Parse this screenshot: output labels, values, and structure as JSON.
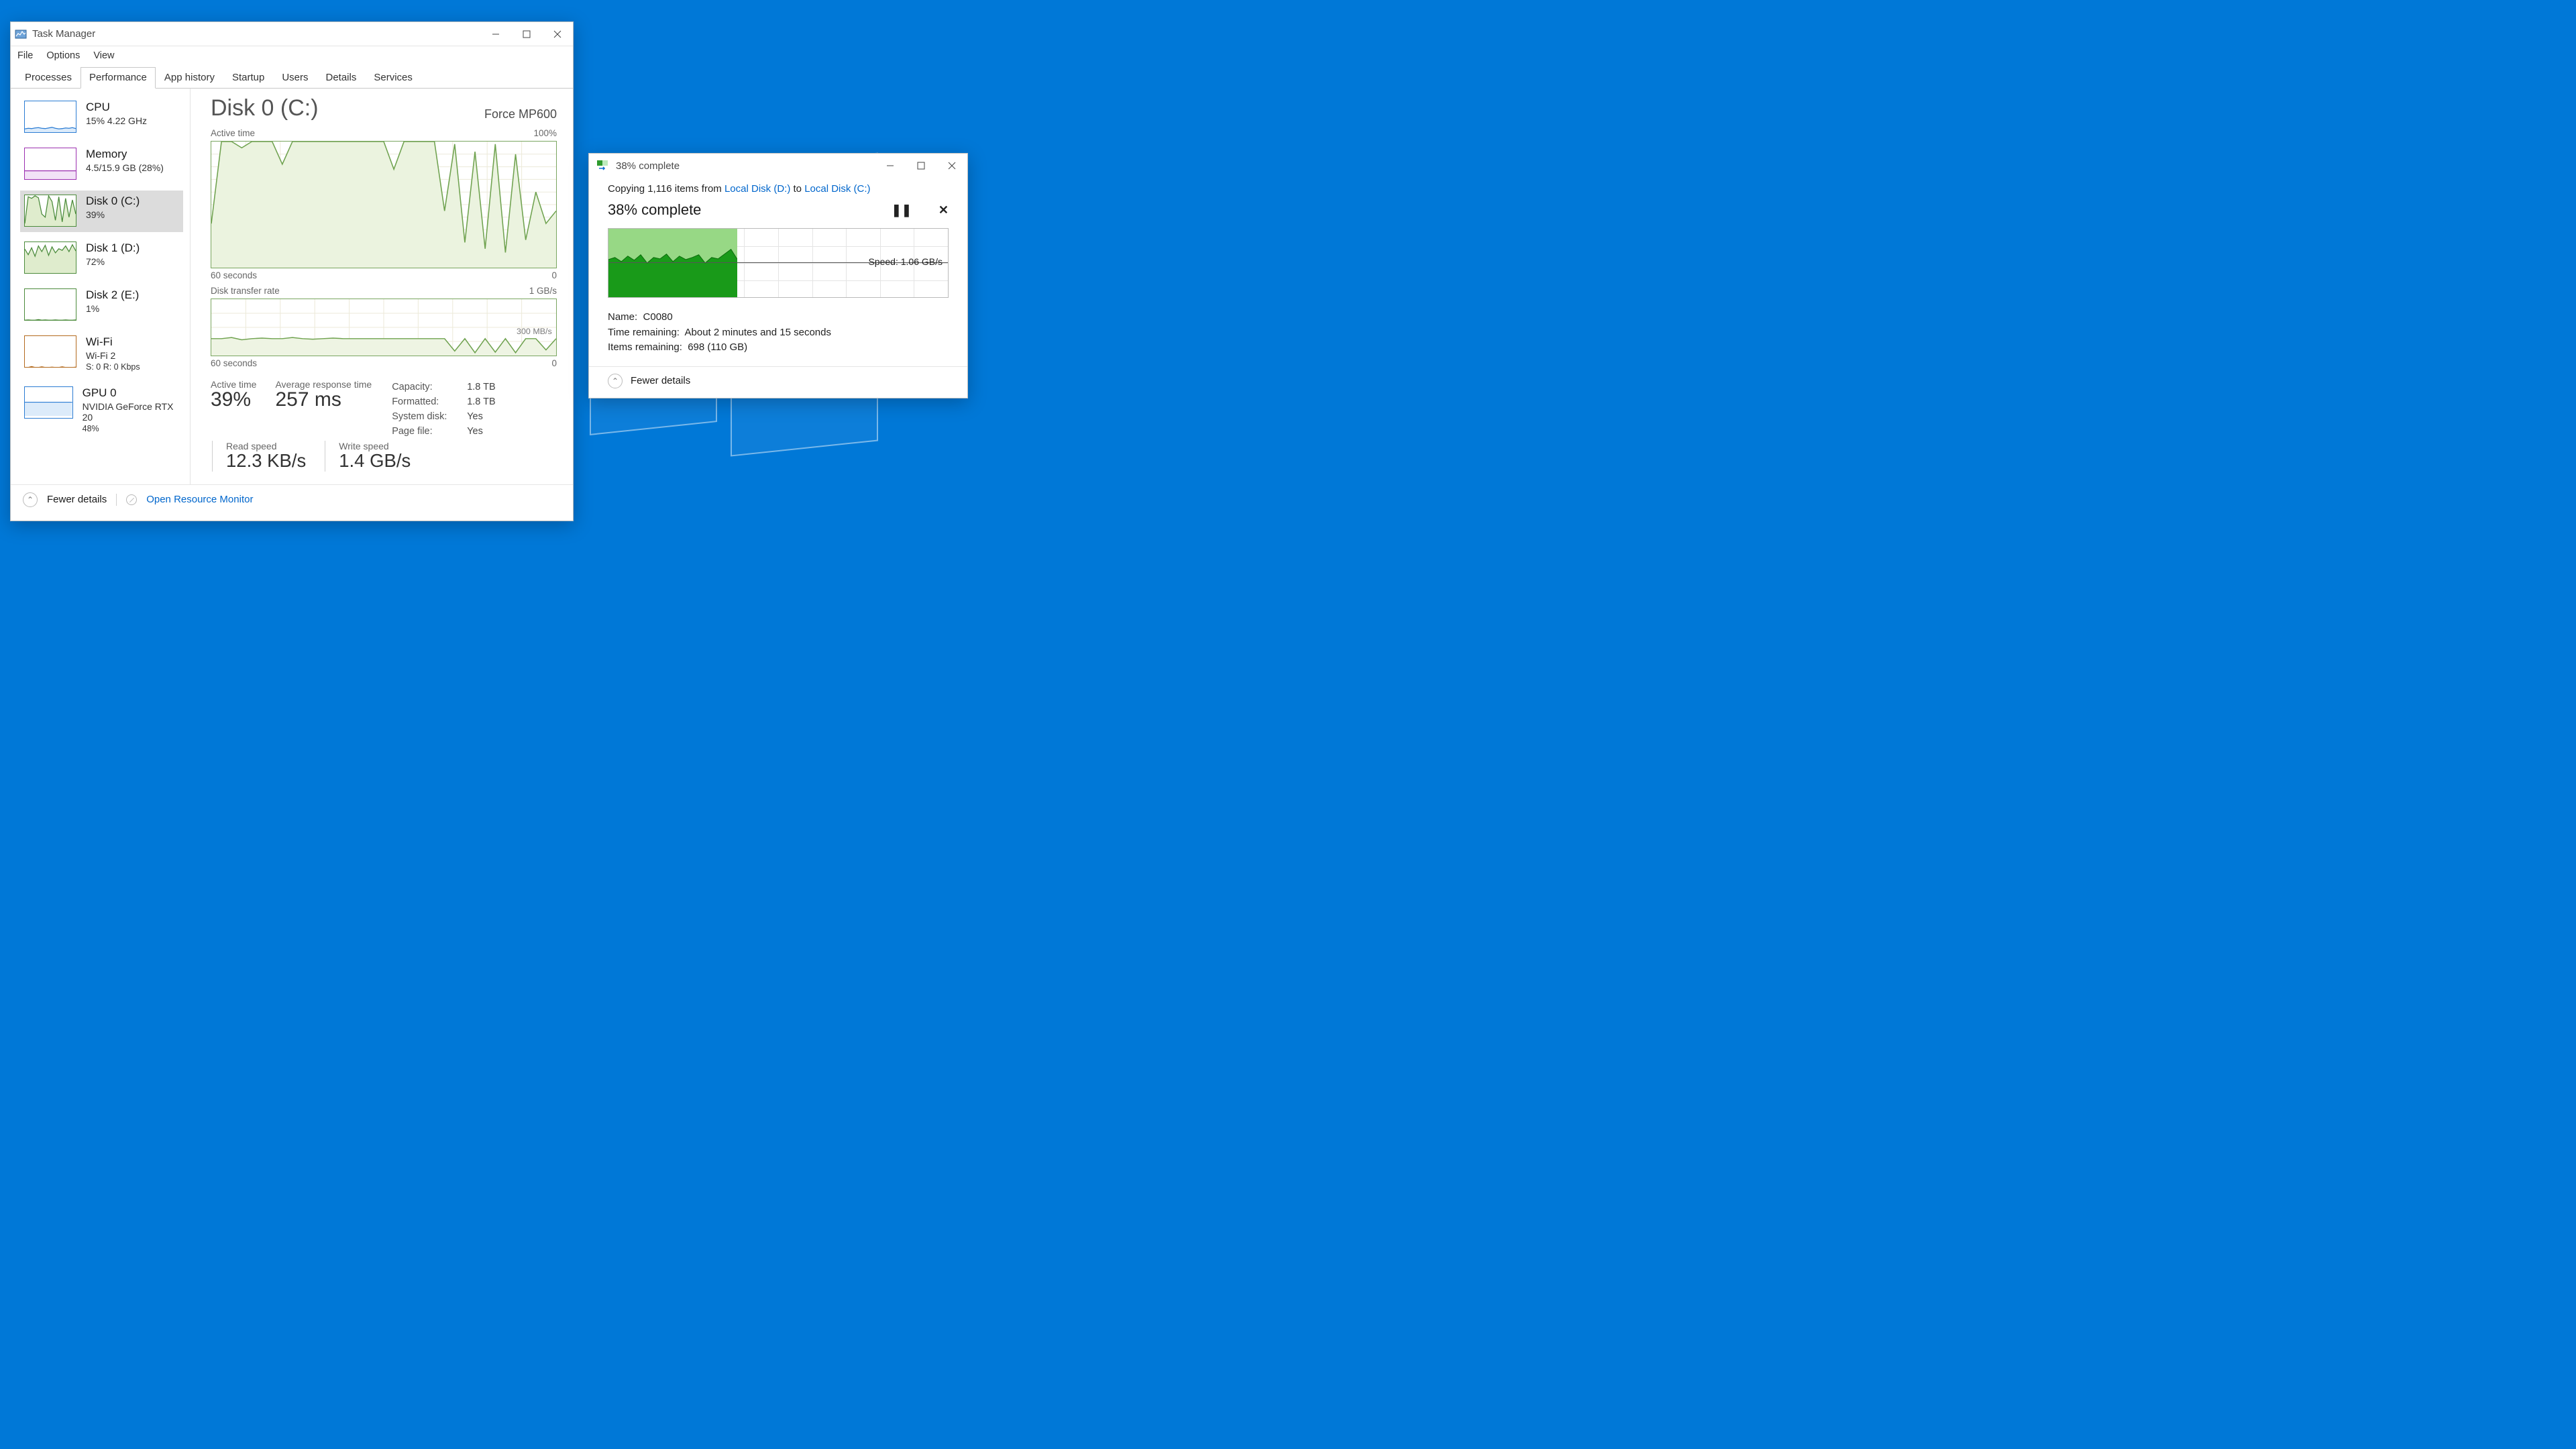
{
  "desktop": {
    "background": "#0078d7",
    "logo_border": "rgba(255,255,255,0.45)"
  },
  "taskmgr": {
    "title": "Task Manager",
    "menu": [
      "File",
      "Options",
      "View"
    ],
    "tabs": [
      "Processes",
      "Performance",
      "App history",
      "Startup",
      "Users",
      "Details",
      "Services"
    ],
    "selectedTab": 1,
    "sidebar": [
      {
        "name": "CPU",
        "line2": "15% 4.22 GHz",
        "color": "#2b7cd3",
        "fill": "#dcebfa",
        "data": [
          12,
          14,
          13,
          15,
          16,
          14,
          13,
          15,
          17,
          14,
          12,
          13,
          15,
          14,
          16,
          13
        ]
      },
      {
        "name": "Memory",
        "line2": "4.5/15.9 GB (28%)",
        "color": "#9c2fb0",
        "fill": "#f2e2f7",
        "data": [
          28,
          28,
          28,
          28,
          28,
          28,
          28,
          28,
          28,
          28,
          28,
          28,
          28,
          28,
          28,
          28
        ]
      },
      {
        "name": "Disk 0 (C:)",
        "line2": "39%",
        "color": "#4b8b3b",
        "fill": "#dfeccd",
        "selected": true,
        "data": [
          10,
          95,
          90,
          98,
          92,
          40,
          30,
          98,
          80,
          20,
          95,
          15,
          90,
          30,
          85,
          40
        ]
      },
      {
        "name": "Disk 1 (D:)",
        "line2": "72%",
        "color": "#4b8b3b",
        "fill": "#dfeccd",
        "data": [
          78,
          60,
          82,
          55,
          88,
          70,
          90,
          58,
          85,
          66,
          79,
          74,
          88,
          70,
          92,
          72
        ]
      },
      {
        "name": "Disk 2 (E:)",
        "line2": "1%",
        "color": "#4b8b3b",
        "fill": "#dfeccd",
        "data": [
          1,
          2,
          1,
          1,
          3,
          1,
          2,
          1,
          1,
          2,
          1,
          1,
          2,
          1,
          1,
          2
        ]
      },
      {
        "name": "Wi-Fi",
        "line2": "Wi-Fi 2",
        "line3": "S: 0 R: 0 Kbps",
        "color": "#b36a1e",
        "fill": "#fff",
        "data": [
          0,
          0,
          3,
          0,
          0,
          2,
          0,
          0,
          1,
          0,
          0,
          2,
          0,
          0,
          0,
          1
        ]
      },
      {
        "name": "GPU 0",
        "line2": "NVIDIA GeForce RTX 20",
        "line3": "48%",
        "color": "#2b7cd3",
        "fill": "#dcebfa",
        "data": [
          48,
          48,
          48,
          48,
          48,
          48,
          48,
          48,
          48,
          48,
          48,
          48,
          48,
          48,
          48,
          48
        ]
      }
    ],
    "main": {
      "heading": "Disk 0 (C:)",
      "model": "Force MP600",
      "active": {
        "label": "Active time",
        "max": "100%",
        "footerLeft": "60 seconds",
        "footerRight": "0",
        "border": "#7aa660",
        "fill": "#ebf3df",
        "line": "#6fa24f",
        "data": [
          35,
          100,
          100,
          95,
          100,
          100,
          100,
          82,
          100,
          100,
          100,
          100,
          100,
          100,
          100,
          100,
          100,
          100,
          78,
          100,
          100,
          100,
          100,
          45,
          98,
          20,
          92,
          15,
          98,
          12,
          90,
          22,
          60,
          35,
          45
        ]
      },
      "transfer": {
        "label": "Disk transfer rate",
        "max": "1 GB/s",
        "mid": "300 MB/s",
        "footerLeft": "60 seconds",
        "footerRight": "0",
        "border": "#7aa660",
        "line": "#6fa24f",
        "data": [
          30,
          30,
          32,
          28,
          30,
          31,
          30,
          30,
          32,
          30,
          29,
          30,
          31,
          30,
          30,
          30,
          30,
          30,
          30,
          30,
          30,
          30,
          30,
          30,
          8,
          30,
          5,
          30,
          6,
          30,
          5,
          30,
          30,
          10,
          30
        ]
      },
      "stats": {
        "activeTime": {
          "label": "Active time",
          "value": "39%"
        },
        "avgResponse": {
          "label": "Average response time",
          "value": "257 ms"
        },
        "readSpeed": {
          "label": "Read speed",
          "value": "12.3 KB/s"
        },
        "writeSpeed": {
          "label": "Write speed",
          "value": "1.4 GB/s"
        }
      },
      "props": [
        {
          "k": "Capacity:",
          "v": "1.8 TB"
        },
        {
          "k": "Formatted:",
          "v": "1.8 TB"
        },
        {
          "k": "System disk:",
          "v": "Yes"
        },
        {
          "k": "Page file:",
          "v": "Yes"
        }
      ]
    },
    "footer": {
      "fewer": "Fewer details",
      "orm": "Open Resource Monitor"
    }
  },
  "copy": {
    "title": "38% complete",
    "msg_prefix": "Copying 1,116 items from ",
    "msg_from": "Local Disk (D:)",
    "msg_mid": " to ",
    "msg_to": "Local Disk (C:)",
    "percentText": "38% complete",
    "progressPercent": 38,
    "speedLabel": "Speed: 1.06 GB/s",
    "speedY": 50,
    "lightGreen": "#97d885",
    "darkGreen": "#199a19",
    "speedData": [
      55,
      58,
      52,
      60,
      54,
      62,
      50,
      58,
      56,
      63,
      52,
      60,
      55,
      58,
      62,
      50,
      58,
      56,
      63,
      70,
      55
    ],
    "details": {
      "name_label": "Name:",
      "name": "C0080",
      "time_label": "Time remaining:",
      "time": "About 2 minutes and 15 seconds",
      "items_label": "Items remaining:",
      "items": "698 (110 GB)"
    },
    "fewer": "Fewer details"
  }
}
